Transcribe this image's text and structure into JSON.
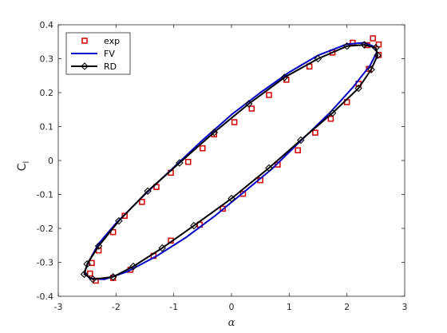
{
  "chart_data": {
    "type": "scatter",
    "title": "",
    "xlabel": "α",
    "ylabel_main": "C",
    "ylabel_sub": "l",
    "xlim": [
      -3,
      3
    ],
    "ylim": [
      -0.4,
      0.4
    ],
    "x_ticks": [
      -3,
      -2,
      -1,
      0,
      1,
      2,
      3
    ],
    "x_tick_labels": [
      "-3",
      "-2",
      "-1",
      "0",
      "1",
      "2",
      "3"
    ],
    "y_ticks": [
      -0.4,
      -0.3,
      -0.2,
      -0.1,
      0,
      0.1,
      0.2,
      0.3,
      0.4
    ],
    "y_tick_labels": [
      "-0.4",
      "-0.3",
      "-0.2",
      "-0.1",
      "0",
      "0.1",
      "0.2",
      "0.3",
      "0.4"
    ],
    "grid": false,
    "box": true,
    "legend_placement": "top-left",
    "series": [
      {
        "name": "exp",
        "style": "markers",
        "marker": "square",
        "color": "#d40000",
        "points": [
          [
            2.55,
            0.342
          ],
          [
            2.45,
            0.36
          ],
          [
            2.35,
            0.34
          ],
          [
            2.1,
            0.347
          ],
          [
            1.75,
            0.318
          ],
          [
            1.35,
            0.277
          ],
          [
            0.95,
            0.238
          ],
          [
            0.65,
            0.193
          ],
          [
            0.35,
            0.153
          ],
          [
            0.05,
            0.113
          ],
          [
            -0.3,
            0.077
          ],
          [
            -0.5,
            0.036
          ],
          [
            -0.75,
            -0.004
          ],
          [
            -1.05,
            -0.036
          ],
          [
            -1.3,
            -0.078
          ],
          [
            -1.55,
            -0.122
          ],
          [
            -1.85,
            -0.163
          ],
          [
            -2.05,
            -0.211
          ],
          [
            -2.3,
            -0.265
          ],
          [
            -2.42,
            -0.302
          ],
          [
            -2.45,
            -0.333
          ],
          [
            -2.35,
            -0.354
          ],
          [
            -2.05,
            -0.346
          ],
          [
            -1.75,
            -0.322
          ],
          [
            -1.35,
            -0.281
          ],
          [
            -1.05,
            -0.236
          ],
          [
            -0.55,
            -0.189
          ],
          [
            -0.15,
            -0.142
          ],
          [
            0.2,
            -0.098
          ],
          [
            0.5,
            -0.058
          ],
          [
            0.8,
            -0.012
          ],
          [
            1.15,
            0.03
          ],
          [
            1.45,
            0.082
          ],
          [
            1.72,
            0.123
          ],
          [
            2.0,
            0.172
          ],
          [
            2.2,
            0.226
          ],
          [
            2.38,
            0.27
          ],
          [
            2.55,
            0.311
          ]
        ]
      },
      {
        "name": "FV",
        "style": "line",
        "color": "#0000c8",
        "points": [
          [
            2.48,
            0.335
          ],
          [
            2.3,
            0.347
          ],
          [
            2.0,
            0.343
          ],
          [
            1.5,
            0.31
          ],
          [
            1.0,
            0.26
          ],
          [
            0.5,
            0.2
          ],
          [
            0.0,
            0.135
          ],
          [
            -0.5,
            0.06
          ],
          [
            -1.0,
            -0.02
          ],
          [
            -1.5,
            -0.1
          ],
          [
            -2.0,
            -0.185
          ],
          [
            -2.3,
            -0.245
          ],
          [
            -2.48,
            -0.3
          ],
          [
            -2.55,
            -0.33
          ],
          [
            -2.45,
            -0.348
          ],
          [
            -2.2,
            -0.35
          ],
          [
            -1.8,
            -0.327
          ],
          [
            -1.3,
            -0.282
          ],
          [
            -0.8,
            -0.228
          ],
          [
            -0.3,
            -0.165
          ],
          [
            0.2,
            -0.095
          ],
          [
            0.7,
            -0.025
          ],
          [
            1.2,
            0.058
          ],
          [
            1.7,
            0.14
          ],
          [
            2.1,
            0.215
          ],
          [
            2.4,
            0.28
          ],
          [
            2.52,
            0.32
          ],
          [
            2.48,
            0.335
          ]
        ]
      },
      {
        "name": "RD",
        "style": "line-markers",
        "marker": "diamond",
        "color": "#000000",
        "points": [
          [
            2.5,
            0.332
          ],
          [
            2.3,
            0.341
          ],
          [
            2.0,
            0.337
          ],
          [
            1.5,
            0.3
          ],
          [
            0.92,
            0.245
          ],
          [
            0.3,
            0.167
          ],
          [
            -0.3,
            0.083
          ],
          [
            -0.9,
            -0.007
          ],
          [
            -1.45,
            -0.09
          ],
          [
            -1.95,
            -0.178
          ],
          [
            -2.3,
            -0.252
          ],
          [
            -2.5,
            -0.305
          ],
          [
            -2.55,
            -0.335
          ],
          [
            -2.4,
            -0.35
          ],
          [
            -2.05,
            -0.343
          ],
          [
            -1.7,
            -0.312
          ],
          [
            -1.2,
            -0.258
          ],
          [
            -0.65,
            -0.192
          ],
          [
            0.0,
            -0.112
          ],
          [
            0.65,
            -0.022
          ],
          [
            1.2,
            0.06
          ],
          [
            1.75,
            0.14
          ],
          [
            2.2,
            0.213
          ],
          [
            2.42,
            0.268
          ],
          [
            2.53,
            0.31
          ],
          [
            2.5,
            0.332
          ]
        ]
      }
    ]
  }
}
